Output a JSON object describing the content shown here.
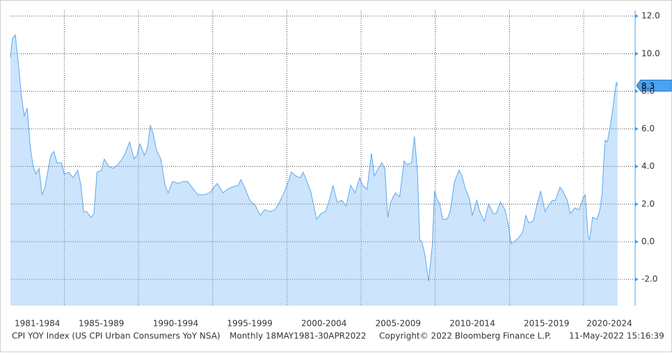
{
  "chart_data": {
    "type": "area",
    "series": [
      {
        "name": "CPI YOY Index",
        "color": "#5aa8ef",
        "fill": "#cce4fc",
        "x": [
          1981.37,
          1981.5,
          1981.7,
          1981.9,
          1982.1,
          1982.3,
          1982.5,
          1982.7,
          1982.9,
          1983.1,
          1983.3,
          1983.5,
          1983.7,
          1983.9,
          1984.1,
          1984.3,
          1984.5,
          1984.8,
          1985.0,
          1985.3,
          1985.6,
          1985.9,
          1986.1,
          1986.3,
          1986.5,
          1986.8,
          1987.0,
          1987.2,
          1987.5,
          1987.7,
          1988.0,
          1988.3,
          1988.6,
          1988.9,
          1989.1,
          1989.4,
          1989.7,
          1989.9,
          1990.1,
          1990.4,
          1990.6,
          1990.8,
          1991.0,
          1991.2,
          1991.5,
          1991.8,
          1992.0,
          1992.3,
          1992.7,
          1993.0,
          1993.3,
          1993.7,
          1994.0,
          1994.4,
          1994.8,
          1995.0,
          1995.3,
          1995.7,
          1996.0,
          1996.3,
          1996.7,
          1996.9,
          1997.2,
          1997.5,
          1997.9,
          1998.2,
          1998.5,
          1998.9,
          1999.2,
          1999.5,
          1999.8,
          2000.1,
          2000.3,
          2000.6,
          2000.9,
          2001.1,
          2001.3,
          2001.6,
          2001.9,
          2002.0,
          2002.3,
          2002.6,
          2002.9,
          2003.1,
          2003.4,
          2003.7,
          2004.0,
          2004.3,
          2004.6,
          2004.9,
          2005.1,
          2005.4,
          2005.7,
          2005.9,
          2006.1,
          2006.4,
          2006.6,
          2006.8,
          2007.0,
          2007.3,
          2007.6,
          2007.9,
          2008.1,
          2008.4,
          2008.6,
          2008.8,
          2008.95,
          2009.1,
          2009.3,
          2009.55,
          2009.8,
          2009.95,
          2010.1,
          2010.3,
          2010.5,
          2010.8,
          2011.0,
          2011.3,
          2011.6,
          2011.8,
          2012.0,
          2012.3,
          2012.5,
          2012.8,
          2013.0,
          2013.3,
          2013.6,
          2013.9,
          2014.1,
          2014.4,
          2014.7,
          2014.95,
          2015.1,
          2015.3,
          2015.6,
          2015.9,
          2016.1,
          2016.3,
          2016.6,
          2016.9,
          2017.1,
          2017.4,
          2017.6,
          2017.9,
          2018.1,
          2018.4,
          2018.6,
          2018.9,
          2019.1,
          2019.4,
          2019.7,
          2019.95,
          2020.1,
          2020.3,
          2020.4,
          2020.6,
          2020.9,
          2021.1,
          2021.25,
          2021.35,
          2021.45,
          2021.6,
          2021.8,
          2021.95,
          2022.1,
          2022.21,
          2022.29
        ],
        "values": [
          9.8,
          10.8,
          11.0,
          9.5,
          7.8,
          6.7,
          7.1,
          5.1,
          4.0,
          3.6,
          3.9,
          2.5,
          2.9,
          3.8,
          4.6,
          4.8,
          4.2,
          4.2,
          3.6,
          3.7,
          3.4,
          3.8,
          3.1,
          1.6,
          1.6,
          1.3,
          1.5,
          3.7,
          3.8,
          4.4,
          4.0,
          3.9,
          4.1,
          4.4,
          4.7,
          5.3,
          4.4,
          4.6,
          5.2,
          4.6,
          5.0,
          6.2,
          5.7,
          4.9,
          4.4,
          3.0,
          2.6,
          3.2,
          3.1,
          3.2,
          3.2,
          2.8,
          2.5,
          2.5,
          2.6,
          2.8,
          3.1,
          2.6,
          2.8,
          2.9,
          3.0,
          3.3,
          2.8,
          2.2,
          1.9,
          1.4,
          1.7,
          1.6,
          1.7,
          2.1,
          2.6,
          3.2,
          3.7,
          3.5,
          3.4,
          3.7,
          3.3,
          2.7,
          1.6,
          1.2,
          1.5,
          1.6,
          2.3,
          3.0,
          2.1,
          2.2,
          1.9,
          3.0,
          2.6,
          3.4,
          3.0,
          2.8,
          4.7,
          3.5,
          3.8,
          4.2,
          3.9,
          1.3,
          2.1,
          2.6,
          2.4,
          4.3,
          4.1,
          4.2,
          5.6,
          3.7,
          0.1,
          0.0,
          -0.7,
          -2.1,
          -0.2,
          2.7,
          2.3,
          2.0,
          1.2,
          1.2,
          1.6,
          3.2,
          3.8,
          3.5,
          2.9,
          2.3,
          1.4,
          2.2,
          1.6,
          1.1,
          2.0,
          1.5,
          1.5,
          2.1,
          1.7,
          0.8,
          -0.1,
          0.0,
          0.2,
          0.5,
          1.4,
          1.0,
          1.1,
          2.1,
          2.7,
          1.6,
          1.9,
          2.2,
          2.2,
          2.9,
          2.7,
          2.2,
          1.5,
          1.8,
          1.7,
          2.3,
          2.5,
          0.3,
          0.1,
          1.3,
          1.2,
          1.7,
          2.6,
          4.2,
          5.4,
          5.3,
          6.2,
          7.0,
          7.9,
          8.5,
          8.3
        ]
      }
    ],
    "xlim": [
      1981.37,
      2023.47
    ],
    "ylim": [
      -3.4,
      12.3
    ],
    "xticks": [
      1985,
      1990,
      1995,
      2000,
      2005,
      2010,
      2015,
      2020
    ],
    "xtick_labels": [
      "1981-1984",
      "1985-1989",
      "1990-1994",
      "1995-1999",
      "2000-2004",
      "2005-2009",
      "2010-2014",
      "2015-2019",
      "2020-2024"
    ],
    "yticks": [
      {
        "value": -2,
        "label": "-2.0"
      },
      {
        "value": 0,
        "label": "0.0"
      },
      {
        "value": 2,
        "label": "2.0"
      },
      {
        "value": 4,
        "label": "4.0"
      },
      {
        "value": 6,
        "label": "6.0"
      },
      {
        "value": 8,
        "label": "8.0"
      },
      {
        "value": 10,
        "label": "10.0"
      },
      {
        "value": 12,
        "label": "12.0"
      }
    ],
    "grid": true,
    "footer": [
      "CPI YOY Index (US CPI Urban Consumers YoY NSA)",
      "Monthly 18MAY1981-30APR2022",
      "Copyright© 2022 Bloomberg Finance L.P.",
      "11-May-2022 15:16:39"
    ]
  }
}
